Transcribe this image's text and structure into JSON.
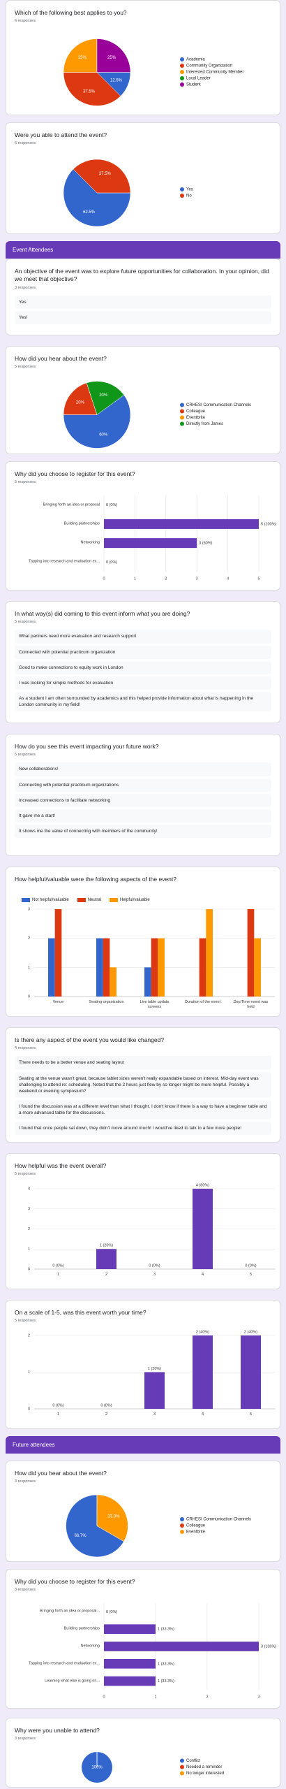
{
  "sections": [
    {
      "title": "Which of the following best applies to you?",
      "responses": "6 responses",
      "chart_data": {
        "type": "pie",
        "categories": [
          "Academia",
          "Community Organization",
          "Interested Community Member",
          "Local Leader",
          "Student"
        ],
        "values": [
          12.5,
          37.5,
          25,
          0,
          25
        ],
        "value_labels": [
          "12.5%",
          "37.5%",
          "25%",
          null,
          "25%"
        ],
        "colors": [
          "#3366cc",
          "#dc3912",
          "#ff9900",
          "#109618",
          "#990099"
        ]
      }
    },
    {
      "title": "Were you able to attend the event?",
      "responses": "6 responses",
      "chart_data": {
        "type": "pie",
        "categories": [
          "Yes",
          "No"
        ],
        "values": [
          62.5,
          37.5
        ],
        "value_labels": [
          "62.5%",
          "37.5%"
        ],
        "colors": [
          "#3366cc",
          "#dc3912"
        ]
      }
    },
    {
      "header": "Event Attendees"
    },
    {
      "title": "An objective of the event was to explore future opportunities for collaboration. In your opinion, did we meet that objective?",
      "responses": "3 responses",
      "answers": [
        "Yes",
        "Yes!"
      ]
    },
    {
      "title": "How did you hear about the event?",
      "responses": "5 responses",
      "chart_data": {
        "type": "pie",
        "categories": [
          "CRHESI Communication Channels",
          "Colleague",
          "Eventbrite",
          "Directly from James"
        ],
        "values": [
          60,
          20,
          0,
          20
        ],
        "value_labels": [
          "60%",
          "20%",
          null,
          "20%"
        ],
        "colors": [
          "#3366cc",
          "#dc3912",
          "#ff9900",
          "#109618"
        ]
      }
    },
    {
      "title": "Why did you choose to register for this event?",
      "responses": "5 responses",
      "chart_data": {
        "type": "hbar",
        "categories": [
          "Bringing forth an idea or proposal",
          "Building partnerships",
          "Networking",
          "Tapping into research and evaluation ex..."
        ],
        "values": [
          0,
          5,
          3,
          0
        ],
        "value_labels": [
          "0 (0%)",
          "5 (100%)",
          "3 (60%)",
          "0 (0%)"
        ],
        "color": "#673ab7",
        "xlim": [
          0,
          5
        ],
        "xticks": [
          0,
          1,
          2,
          3,
          4,
          5
        ]
      }
    },
    {
      "title": "In what way(s) did coming to this event inform what you are doing?",
      "responses": "5 responses",
      "answers": [
        "What partners need more evaluation and research support",
        "Connected with potential practicum organization",
        "Good to make connections to equity work in London",
        "I was looking for simple methods for evaluation",
        "As a student I am often surrounded by academics and this helped provide information about what is happening in the London community in my field!"
      ]
    },
    {
      "title": "How do you see this event impacting your future work?",
      "responses": "5 responses",
      "answers": [
        "New collaborations!",
        "Connecting with potential practicum organizations",
        "Increased connections to facilitate networking",
        "It gave me a start!",
        "It shows me the value of connecting with members of the community!"
      ]
    },
    {
      "title": "How helpful/valuable were the following aspects of the event?",
      "chart_data": {
        "type": "bar",
        "categories": [
          "Venue",
          "Seating organization",
          "Live table update screens",
          "Duration of the event",
          "Day/Time event was held"
        ],
        "series": [
          {
            "name": "Not helpful/valuable",
            "color": "#3366cc",
            "values": [
              2,
              2,
              1,
              0,
              0
            ]
          },
          {
            "name": "Neutral",
            "color": "#dc3912",
            "values": [
              3,
              2,
              2,
              2,
              3
            ]
          },
          {
            "name": "Helpful/valuable",
            "color": "#ff9900",
            "values": [
              0,
              1,
              2,
              3,
              2
            ]
          }
        ],
        "ylim": [
          0,
          3
        ],
        "yticks": [
          0,
          1,
          2,
          3
        ]
      }
    },
    {
      "title": "Is there any aspect of the event you would like changed?",
      "responses": "4 responses",
      "answers": [
        "There needs to be a better venue and seating layout",
        "Seating at the venue wasn't great, because tablet sizes weren't really expandable based on interest. Mid-day event was challenging to attend re: scheduling. Noted that the 2 hours just flew by so longer might be more helpful. Possibly a weekend or evening symposium?",
        "I found the discussion was at a different level than what I thought. I don't know if there is a way to have a beginner table and a more advanced table for the discussions.",
        "I found that once people sat down, they didn't move around much! I would've liked to talk to a few more people!"
      ]
    },
    {
      "title": "How helpful was the event overall?",
      "responses": "5 responses",
      "chart_data": {
        "type": "bar",
        "categories": [
          "1",
          "2",
          "3",
          "4",
          "5"
        ],
        "values": [
          0,
          1,
          0,
          4,
          0
        ],
        "value_labels": [
          "0 (0%)",
          "1 (20%)",
          "0 (0%)",
          "4 (80%)",
          "0 (0%)"
        ],
        "color": "#673ab7",
        "ylim": [
          0,
          4
        ],
        "yticks": [
          0,
          1,
          2,
          3,
          4
        ]
      }
    },
    {
      "title": "On a scale of 1-5, was this event worth your time?",
      "responses": "5 responses",
      "chart_data": {
        "type": "bar",
        "categories": [
          "1",
          "2",
          "3",
          "4",
          "5"
        ],
        "values": [
          0,
          0,
          1,
          2,
          2
        ],
        "value_labels": [
          "0 (0%)",
          "0 (0%)",
          "1 (20%)",
          "2 (40%)",
          "2 (40%)"
        ],
        "color": "#673ab7",
        "ylim": [
          0,
          2
        ],
        "yticks": [
          0,
          1,
          2
        ]
      }
    },
    {
      "header": "Future attendees"
    },
    {
      "title": "How did you hear about the event?",
      "responses": "3 responses",
      "chart_data": {
        "type": "pie",
        "categories": [
          "CRHESI Communication Channels",
          "Colleague",
          "Eventbrite"
        ],
        "values": [
          66.7,
          0,
          33.3
        ],
        "value_labels": [
          "66.7%",
          null,
          "33.3%"
        ],
        "colors": [
          "#3366cc",
          "#dc3912",
          "#ff9900"
        ]
      }
    },
    {
      "title": "Why did you choose to register for this event?",
      "responses": "3 responses",
      "chart_data": {
        "type": "hbar",
        "categories": [
          "Bringing forth an idea or proposal...",
          "Building partnerships",
          "Networking",
          "Tapping into research and evaluation ex...",
          "Learning what else is going on..."
        ],
        "values": [
          0,
          1,
          3,
          1,
          1
        ],
        "value_labels": [
          "0 (0%)",
          "1 (33.3%)",
          "3 (100%)",
          "1 (33.3%)",
          "1 (33.3%)"
        ],
        "color": "#673ab7",
        "xlim": [
          0,
          3
        ],
        "xticks": [
          0,
          1,
          2,
          3
        ]
      }
    },
    {
      "title": "Why were you unable to attend?",
      "responses": "3 responses",
      "chart_data": {
        "type": "pie",
        "categories": [
          "Conflict",
          "Needed a reminder",
          "No longer interested"
        ],
        "values": [
          100,
          0,
          0
        ],
        "value_labels": [
          "100%",
          null,
          null
        ],
        "colors": [
          "#3366cc",
          "#dc3912",
          "#ff9900"
        ]
      }
    }
  ]
}
